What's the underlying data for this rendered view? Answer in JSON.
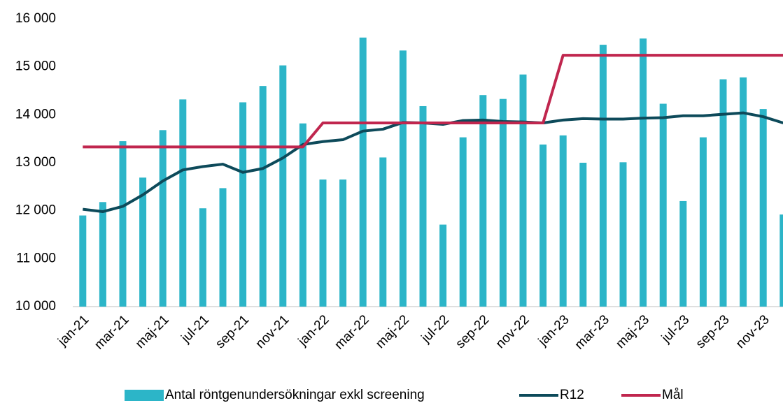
{
  "chart_data": {
    "type": "bar-line",
    "categories": [
      "jan-21",
      null,
      "mar-21",
      null,
      "maj-21",
      null,
      "jul-21",
      null,
      "sep-21",
      null,
      "nov-21",
      null,
      "jan-22",
      null,
      "mar-22",
      null,
      "maj-22",
      null,
      "jul-22",
      null,
      "sep-22",
      null,
      "nov-22",
      null,
      "jan-23",
      null,
      "mar-23",
      null,
      "maj-23",
      null,
      "jul-23",
      null,
      "sep-23",
      null,
      "nov-23",
      null
    ],
    "series": [
      {
        "name": "Antal röntgenundersökningar exkl screening",
        "type": "bar",
        "color": "#2cb5c8",
        "values": [
          11900,
          12180,
          13450,
          12690,
          13680,
          14320,
          12050,
          12470,
          14260,
          14600,
          15030,
          13820,
          12650,
          12650,
          15610,
          13110,
          15340,
          14180,
          11710,
          13530,
          14410,
          14330,
          14840,
          13380,
          13570,
          13000,
          15460,
          13010,
          15590,
          14230,
          12200,
          13530,
          14740,
          14780,
          14120,
          11920
        ]
      },
      {
        "name": "R12",
        "type": "line",
        "color": "#0d4a5a",
        "values": [
          12030,
          11980,
          12090,
          12330,
          12620,
          12850,
          12920,
          12970,
          12800,
          12880,
          13100,
          13380,
          13440,
          13480,
          13660,
          13700,
          13840,
          13830,
          13800,
          13880,
          13890,
          13860,
          13850,
          13830,
          13890,
          13920,
          13910,
          13910,
          13930,
          13940,
          13980,
          13980,
          14010,
          14040,
          13960,
          13830
        ]
      },
      {
        "name": "Mål",
        "type": "line",
        "color": "#c0264e",
        "values": [
          13330,
          13330,
          13330,
          13330,
          13330,
          13330,
          13330,
          13330,
          13330,
          13330,
          13330,
          13330,
          13830,
          13830,
          13830,
          13830,
          13830,
          13830,
          13830,
          13830,
          13830,
          13830,
          13830,
          13830,
          15240,
          15240,
          15240,
          15240,
          15240,
          15240,
          15240,
          15240,
          15240,
          15240,
          15240,
          15240
        ]
      }
    ],
    "ylim": [
      10000,
      16000
    ],
    "yticks": [
      {
        "value": 10000,
        "label": "10 000"
      },
      {
        "value": 11000,
        "label": "11 000"
      },
      {
        "value": 12000,
        "label": "12 000"
      },
      {
        "value": 13000,
        "label": "13 000"
      },
      {
        "value": 14000,
        "label": "14 000"
      },
      {
        "value": 15000,
        "label": "15 000"
      },
      {
        "value": 16000,
        "label": "16 000"
      }
    ],
    "grid": false,
    "legend": "bottom"
  }
}
